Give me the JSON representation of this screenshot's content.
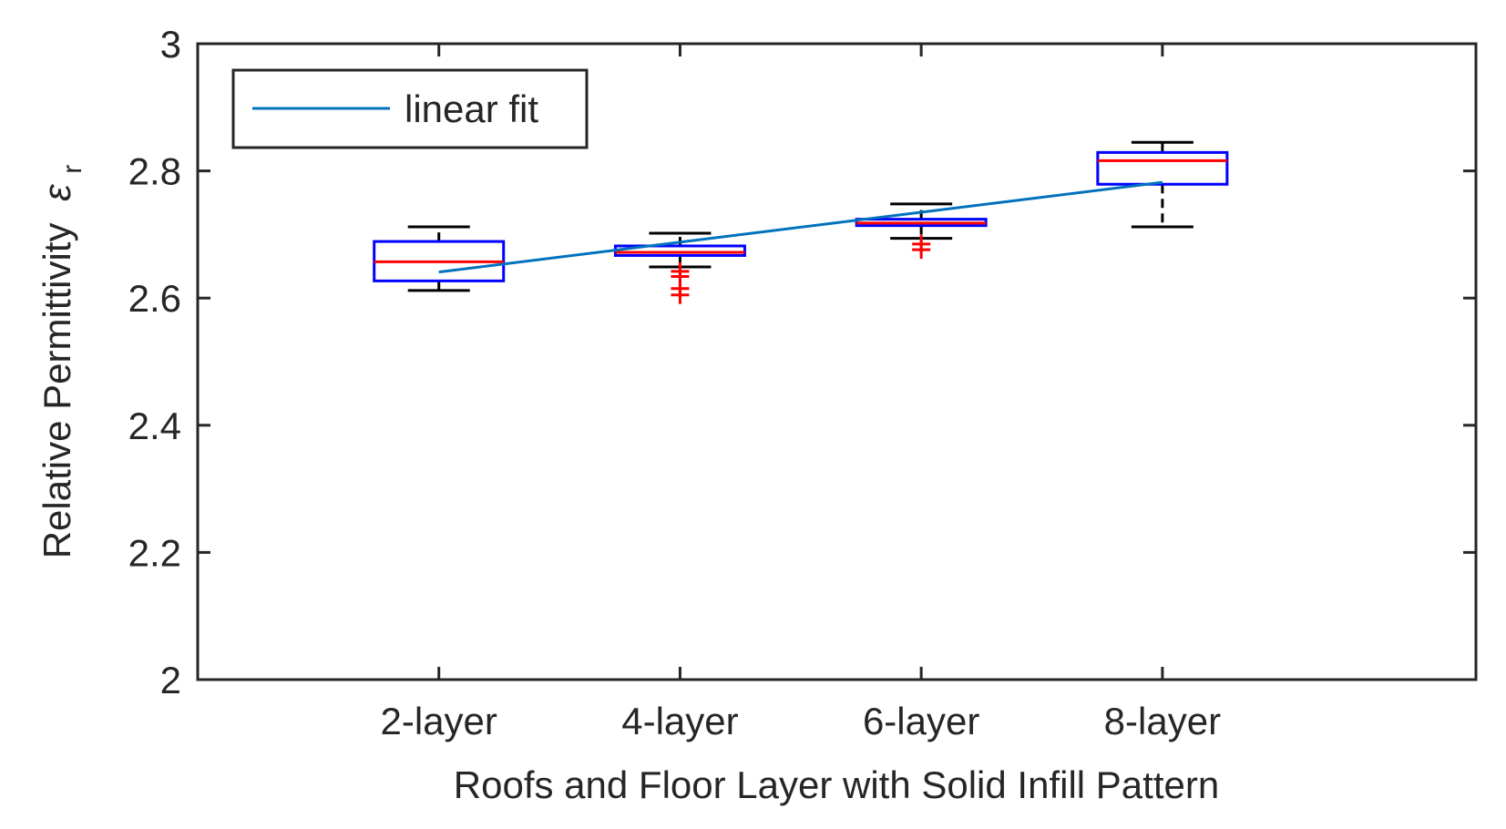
{
  "chart_data": {
    "type": "boxplot",
    "title": "",
    "xlabel": "Roofs and Floor Layer with Solid Infill Pattern",
    "ylabel": "Relative Permittivity",
    "ylabel_symbol": "ε",
    "ylabel_subscript": "r",
    "ylim": [
      2,
      3
    ],
    "yticks": [
      "2",
      "2.2",
      "2.4",
      "2.6",
      "2.8",
      "3"
    ],
    "yticks_values": [
      2,
      2.2,
      2.4,
      2.6,
      2.8,
      3
    ],
    "categories": [
      "2-layer",
      "4-layer",
      "6-layer",
      "8-layer"
    ],
    "grid": false,
    "legend": {
      "position": "top-left",
      "entries": [
        "linear fit"
      ]
    },
    "boxes": [
      {
        "category": "2-layer",
        "whisker_low": 2.612,
        "q1": 2.627,
        "median": 2.657,
        "q3": 2.689,
        "whisker_high": 2.712,
        "outliers": []
      },
      {
        "category": "4-layer",
        "whisker_low": 2.649,
        "q1": 2.667,
        "median": 2.672,
        "q3": 2.682,
        "whisker_high": 2.702,
        "outliers": [
          2.642,
          2.634,
          2.615,
          2.605
        ]
      },
      {
        "category": "6-layer",
        "whisker_low": 2.694,
        "q1": 2.714,
        "median": 2.718,
        "q3": 2.724,
        "whisker_high": 2.748,
        "outliers": [
          2.685,
          2.676
        ]
      },
      {
        "category": "8-layer",
        "whisker_low": 2.712,
        "q1": 2.779,
        "median": 2.816,
        "q3": 2.829,
        "whisker_high": 2.845,
        "outliers": []
      }
    ],
    "series": [
      {
        "name": "linear fit",
        "type": "line",
        "x": [
          "2-layer",
          "8-layer"
        ],
        "values": [
          2.641,
          2.782
        ]
      }
    ],
    "colors": {
      "box": "#0000ff",
      "median": "#ff0000",
      "whisker": "#000000",
      "outlier": "#ff0000",
      "fit_line": "#0072bd",
      "axes": "#262626"
    }
  }
}
